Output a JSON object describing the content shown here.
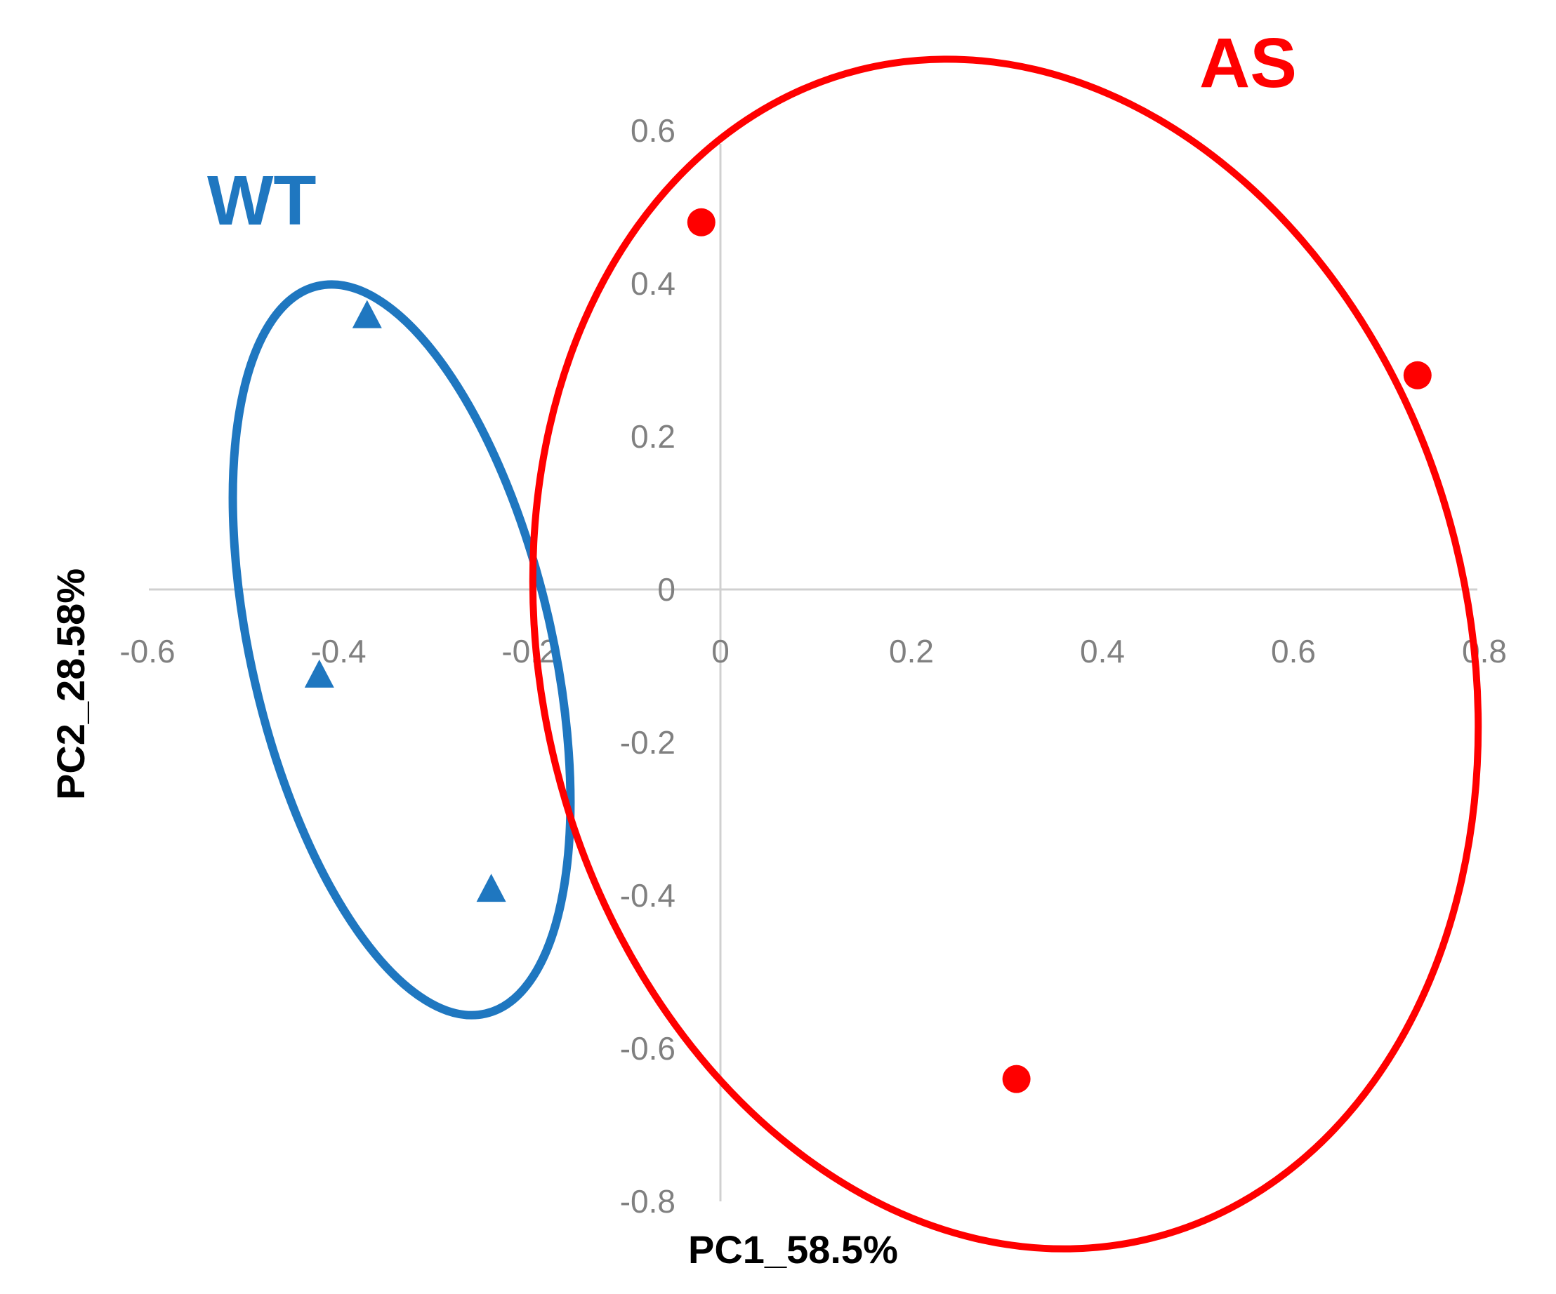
{
  "chart_data": {
    "type": "scatter",
    "xlabel": "PC1_58.5%",
    "ylabel": "PC2_28.58%",
    "xlim": [
      -0.6,
      0.8
    ],
    "ylim": [
      -0.8,
      0.6
    ],
    "x_ticks": [
      "-0.6",
      "-0.4",
      "-0.2",
      "0",
      "0.2",
      "0.4",
      "0.6",
      "0.8"
    ],
    "y_ticks": [
      "0.6",
      "0.4",
      "0.2",
      "0",
      "-0.2",
      "-0.4",
      "-0.6",
      "-0.8"
    ],
    "grid": false,
    "series": [
      {
        "name": "WT",
        "marker": "triangle",
        "color": "#1f77c0",
        "points": [
          {
            "x": -0.37,
            "y": 0.36
          },
          {
            "x": -0.42,
            "y": -0.11
          },
          {
            "x": -0.24,
            "y": -0.39
          }
        ]
      },
      {
        "name": "AS",
        "marker": "circle",
        "color": "#ff0000",
        "points": [
          {
            "x": -0.02,
            "y": 0.48
          },
          {
            "x": 0.73,
            "y": 0.28
          },
          {
            "x": 0.31,
            "y": -0.64
          }
        ]
      }
    ]
  }
}
